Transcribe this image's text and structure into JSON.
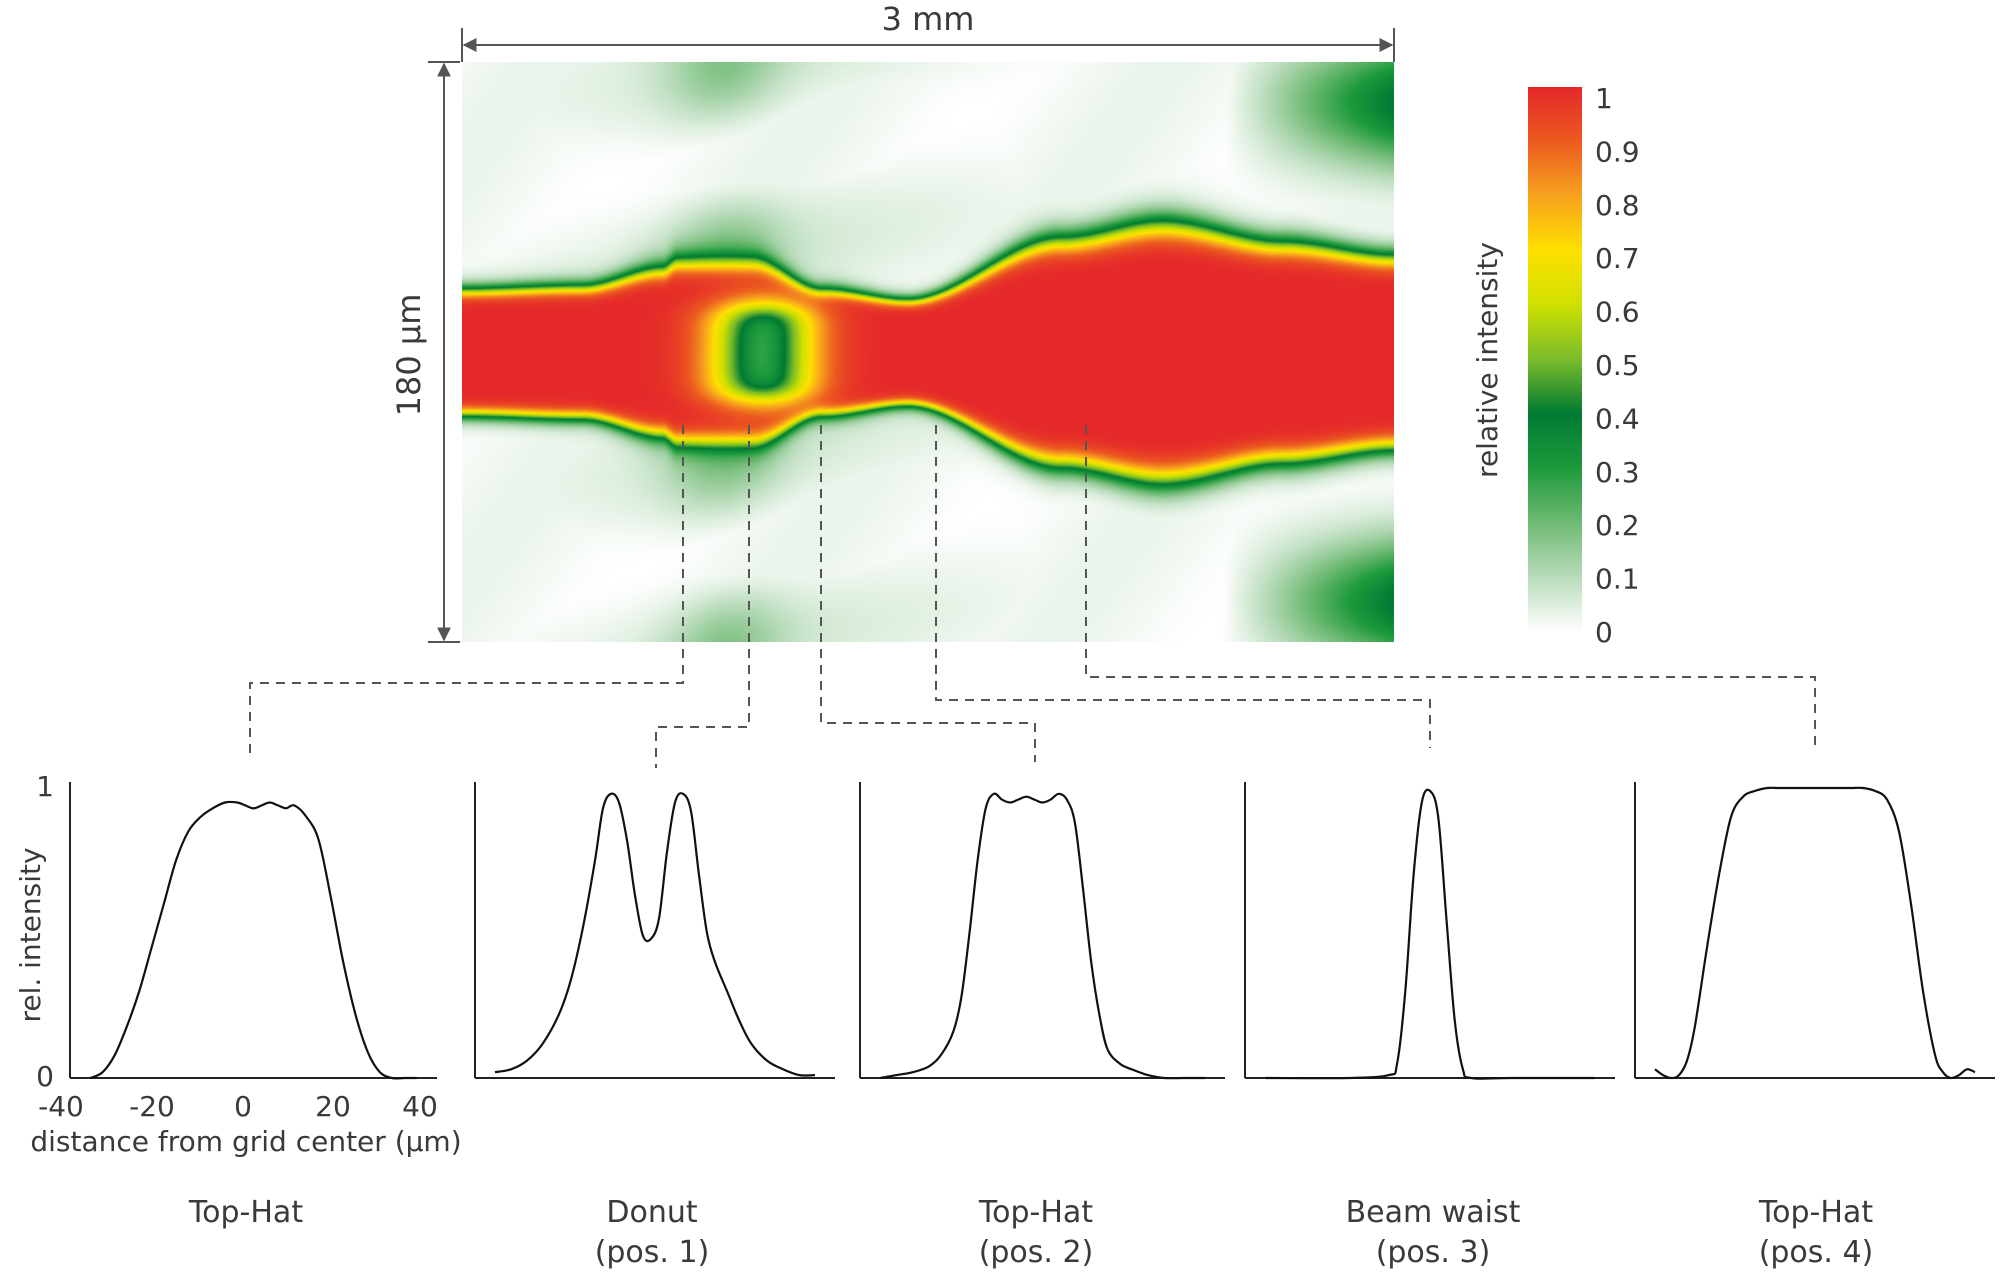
{
  "heatmap": {
    "width_label": "3 mm",
    "height_label": "180 µm",
    "colorbar": {
      "label": "relative intensity",
      "ticks": [
        "1",
        "0.9",
        "0.8",
        "0.7",
        "0.6",
        "0.5",
        "0.4",
        "0.3",
        "0.2",
        "0.1",
        "0"
      ],
      "colors": [
        "#ffffff",
        "#b9dcbb",
        "#6fba74",
        "#1e9a3c",
        "#007a33",
        "#79bc2a",
        "#cfe000",
        "#ffe000",
        "#f7a21e",
        "#ec5b20",
        "#e5282a"
      ]
    }
  },
  "chart_data": [
    {
      "type": "line",
      "title": "Top-Hat",
      "subtitle": "",
      "xlabel": "distance from grid center (µm)",
      "ylabel": "rel. intensity",
      "xticks": [
        "-40",
        "-20",
        "0",
        "20",
        "40"
      ],
      "yticks": [
        "0",
        "1"
      ],
      "xlim": [
        -45,
        45
      ],
      "ylim": [
        0,
        1
      ],
      "x": [
        -40,
        -37,
        -34,
        -31,
        -28,
        -25,
        -22,
        -19,
        -16,
        -13,
        -10,
        -7,
        -4,
        -2,
        0,
        2,
        4,
        6,
        8,
        10,
        13,
        16,
        19,
        22,
        25,
        28,
        31,
        34,
        37,
        40
      ],
      "y": [
        0.0,
        0.02,
        0.08,
        0.18,
        0.3,
        0.45,
        0.6,
        0.75,
        0.85,
        0.9,
        0.93,
        0.95,
        0.95,
        0.94,
        0.93,
        0.94,
        0.95,
        0.94,
        0.93,
        0.94,
        0.9,
        0.82,
        0.62,
        0.4,
        0.22,
        0.09,
        0.02,
        0.0,
        0.0,
        0.0
      ]
    },
    {
      "type": "line",
      "title": "Donut",
      "subtitle": "(pos. 1)",
      "xlim": [
        -45,
        45
      ],
      "ylim": [
        0,
        1
      ],
      "x": [
        -40,
        -36,
        -32,
        -28,
        -24,
        -21,
        -18,
        -15,
        -13,
        -11,
        -9,
        -7,
        -5,
        -3,
        -1,
        1,
        3,
        5,
        7,
        9,
        11,
        13,
        15,
        18,
        21,
        24,
        28,
        32,
        36,
        40
      ],
      "y": [
        0.02,
        0.03,
        0.06,
        0.12,
        0.22,
        0.34,
        0.52,
        0.75,
        0.93,
        0.98,
        0.95,
        0.82,
        0.63,
        0.49,
        0.48,
        0.55,
        0.78,
        0.95,
        0.98,
        0.92,
        0.7,
        0.5,
        0.4,
        0.3,
        0.2,
        0.12,
        0.06,
        0.03,
        0.01,
        0.01
      ]
    },
    {
      "type": "line",
      "title": "Top-Hat",
      "subtitle": "(pos. 2)",
      "xlim": [
        -45,
        45
      ],
      "ylim": [
        0,
        1
      ],
      "x": [
        -40,
        -36,
        -32,
        -28,
        -25,
        -22,
        -20,
        -18,
        -16,
        -14,
        -12,
        -10,
        -8,
        -6,
        -4,
        -2,
        0,
        2,
        4,
        6,
        8,
        10,
        12,
        14,
        16,
        19,
        22,
        26,
        30,
        35,
        40
      ],
      "y": [
        0.0,
        0.01,
        0.02,
        0.04,
        0.08,
        0.16,
        0.28,
        0.5,
        0.75,
        0.93,
        0.98,
        0.96,
        0.95,
        0.96,
        0.97,
        0.96,
        0.95,
        0.96,
        0.98,
        0.96,
        0.88,
        0.65,
        0.4,
        0.22,
        0.1,
        0.05,
        0.03,
        0.01,
        0.0,
        0.0,
        0.0
      ]
    },
    {
      "type": "line",
      "title": "Beam waist",
      "subtitle": "(pos. 3)",
      "xlim": [
        -45,
        45
      ],
      "ylim": [
        0,
        1
      ],
      "x": [
        -40,
        -20,
        -10,
        -8,
        -6,
        -4,
        -2,
        0,
        2,
        4,
        6,
        8,
        10,
        20,
        40
      ],
      "y": [
        0.0,
        0.0,
        0.01,
        0.05,
        0.3,
        0.7,
        0.95,
        0.99,
        0.9,
        0.55,
        0.2,
        0.03,
        0.0,
        0.0,
        0.0
      ]
    },
    {
      "type": "line",
      "title": "Top-Hat",
      "subtitle": "(pos. 4)",
      "xlim": [
        -45,
        45
      ],
      "ylim": [
        0,
        1
      ],
      "x": [
        -40,
        -38,
        -36,
        -34,
        -32,
        -30,
        -27,
        -24,
        -21,
        -18,
        -15,
        -12,
        -9,
        -6,
        -3,
        0,
        3,
        6,
        9,
        12,
        15,
        18,
        21,
        24,
        27,
        30,
        32,
        34,
        36,
        38,
        40
      ],
      "y": [
        0.03,
        0.01,
        0.0,
        0.01,
        0.06,
        0.18,
        0.45,
        0.7,
        0.9,
        0.97,
        0.99,
        1.0,
        1.0,
        1.0,
        1.0,
        1.0,
        1.0,
        1.0,
        1.0,
        1.0,
        0.99,
        0.96,
        0.85,
        0.6,
        0.3,
        0.08,
        0.02,
        0.0,
        0.01,
        0.03,
        0.02
      ]
    }
  ]
}
